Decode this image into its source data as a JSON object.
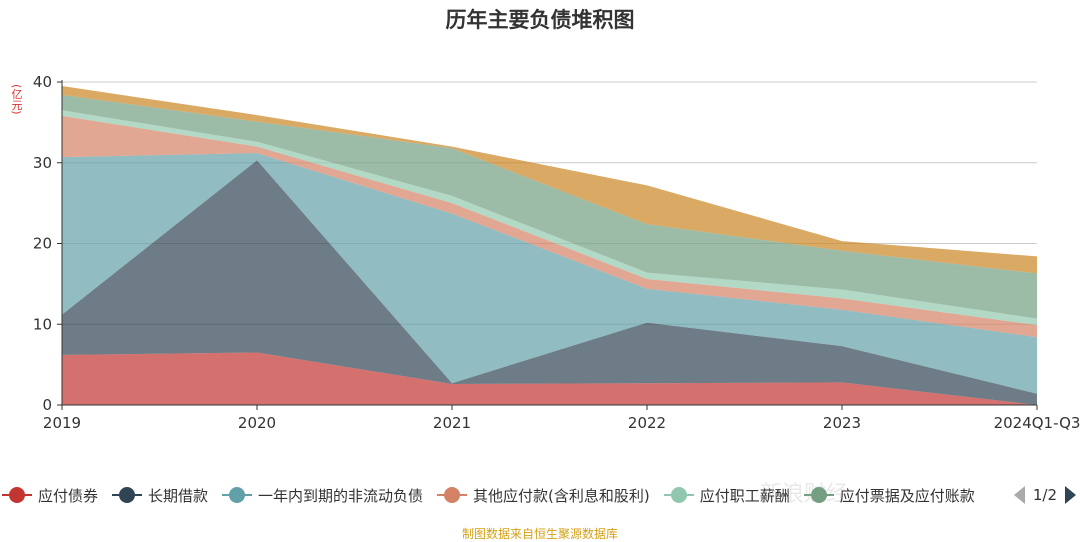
{
  "chart_data": {
    "type": "area",
    "title": "历年主要负债堆积图",
    "unit_label": "(亿元)",
    "categories": [
      "2019",
      "2020",
      "2021",
      "2022",
      "2023",
      "2024Q1-Q3"
    ],
    "ylim": [
      0,
      40
    ],
    "yticks": [
      0,
      10,
      20,
      30,
      40
    ],
    "stacked": true,
    "grid": true,
    "legend_position": "bottom",
    "series": [
      {
        "name": "应付债券",
        "color": "#c23531",
        "values": [
          6.2,
          6.5,
          2.6,
          2.7,
          2.8,
          0.0
        ]
      },
      {
        "name": "长期借款",
        "color": "#2f4554",
        "values": [
          5.0,
          23.8,
          0.1,
          7.5,
          4.5,
          1.4
        ]
      },
      {
        "name": "一年内到期的非流动负债",
        "color": "#61a0a8",
        "values": [
          19.5,
          0.9,
          21.0,
          4.2,
          4.5,
          7.0
        ]
      },
      {
        "name": "其他应付款(含利息和股利)",
        "color": "#d48265",
        "values": [
          5.1,
          0.8,
          1.3,
          1.2,
          1.4,
          1.5
        ]
      },
      {
        "name": "应付职工薪酬",
        "color": "#91c7ae",
        "values": [
          0.7,
          0.6,
          0.9,
          0.8,
          1.1,
          0.8
        ]
      },
      {
        "name": "应付票据及应付账款",
        "color": "#749f83",
        "values": [
          1.9,
          2.5,
          5.9,
          6.0,
          4.8,
          5.6
        ]
      },
      {
        "name": "",
        "color": "#ca8622",
        "values": [
          1.1,
          0.8,
          0.2,
          4.8,
          1.2,
          2.1
        ]
      }
    ]
  },
  "legend": {
    "items": [
      {
        "label": "应付债券",
        "color": "#c23531"
      },
      {
        "label": "长期借款",
        "color": "#2f4554"
      },
      {
        "label": "一年内到期的非流动负债",
        "color": "#61a0a8"
      },
      {
        "label": "其他应付款(含利息和股利)",
        "color": "#d48265"
      },
      {
        "label": "应付职工薪酬",
        "color": "#91c7ae"
      },
      {
        "label": "应付票据及应付账款",
        "color": "#749f83"
      }
    ],
    "page_text": "1/2"
  },
  "footer_text": "制图数据来自恒生聚源数据库",
  "watermark_text": "新浪财经"
}
